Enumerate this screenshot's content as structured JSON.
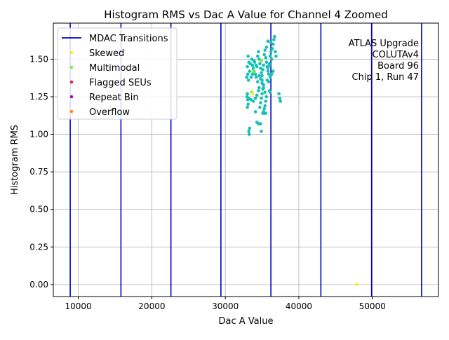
{
  "chart_data": {
    "type": "scatter",
    "title": "Histogram RMS vs Dac A Value for Channel 4 Zoomed",
    "xlabel": "Dac A Value",
    "ylabel": "Histogram RMS",
    "xlim": [
      6600,
      59000
    ],
    "ylim": [
      -0.08,
      1.74
    ],
    "x_ticks": [
      10000,
      20000,
      30000,
      40000,
      50000
    ],
    "x_tick_labels": [
      "10000",
      "20000",
      "30000",
      "40000",
      "50000"
    ],
    "y_ticks": [
      0.0,
      0.25,
      0.5,
      0.75,
      1.0,
      1.25,
      1.5
    ],
    "y_tick_labels": [
      "0.00",
      "0.25",
      "0.50",
      "0.75",
      "1.00",
      "1.25",
      "1.50"
    ],
    "grid": true,
    "legend_position": "top-left",
    "mdac_transitions": [
      8900,
      15800,
      22600,
      29400,
      36200,
      43000,
      49900,
      56700
    ],
    "legend": [
      {
        "label": "MDAC Transitions",
        "marker": "line",
        "color": "#0000cc"
      },
      {
        "label": "Skewed",
        "marker": "dot",
        "color": "#f2ef2a"
      },
      {
        "label": "Multimodal",
        "marker": "dot",
        "color": "#7cf03a"
      },
      {
        "label": "Flagged SEUs",
        "marker": "dot",
        "color": "#d92a3c"
      },
      {
        "label": "Repeat Bin",
        "marker": "dot",
        "color": "#8b1a9a"
      },
      {
        "label": "Overflow",
        "marker": "dot",
        "color": "#ff8c1a"
      }
    ],
    "annotation_lines": [
      "ATLAS Upgrade",
      "COLUTAv4",
      "Board 96",
      "Chip 1, Run 47"
    ],
    "series": [
      {
        "color": "#14c1b4",
        "points": [
          [
            33100,
            1.52
          ],
          [
            33200,
            1.48
          ],
          [
            33000,
            1.45
          ],
          [
            33300,
            1.42
          ],
          [
            33050,
            1.4
          ],
          [
            32900,
            1.38
          ],
          [
            33150,
            1.36
          ],
          [
            33400,
            1.47
          ],
          [
            33600,
            1.5
          ],
          [
            33700,
            1.46
          ],
          [
            33800,
            1.44
          ],
          [
            33900,
            1.42
          ],
          [
            34000,
            1.48
          ],
          [
            34100,
            1.4
          ],
          [
            34200,
            1.38
          ],
          [
            34300,
            1.45
          ],
          [
            34400,
            1.52
          ],
          [
            34500,
            1.55
          ],
          [
            34600,
            1.5
          ],
          [
            34700,
            1.47
          ],
          [
            34800,
            1.44
          ],
          [
            34900,
            1.41
          ],
          [
            35000,
            1.39
          ],
          [
            35100,
            1.43
          ],
          [
            35200,
            1.46
          ],
          [
            35300,
            1.53
          ],
          [
            35400,
            1.56
          ],
          [
            35500,
            1.51
          ],
          [
            35600,
            1.48
          ],
          [
            35700,
            1.45
          ],
          [
            35800,
            1.42
          ],
          [
            35900,
            1.4
          ],
          [
            36000,
            1.47
          ],
          [
            36100,
            1.52
          ],
          [
            36200,
            1.55
          ],
          [
            36300,
            1.5
          ],
          [
            36400,
            1.57
          ],
          [
            36500,
            1.6
          ],
          [
            36600,
            1.63
          ],
          [
            36700,
            1.65
          ],
          [
            35800,
            1.62
          ],
          [
            35600,
            1.58
          ],
          [
            36200,
            1.61
          ],
          [
            36800,
            1.55
          ],
          [
            36900,
            1.52
          ],
          [
            34800,
            1.37
          ],
          [
            35000,
            1.34
          ],
          [
            35200,
            1.31
          ],
          [
            35400,
            1.28
          ],
          [
            35600,
            1.25
          ],
          [
            35500,
            1.22
          ],
          [
            35400,
            1.19
          ],
          [
            35300,
            1.17
          ],
          [
            35200,
            1.15
          ],
          [
            35100,
            1.14
          ],
          [
            35300,
            1.14
          ],
          [
            35500,
            1.14
          ],
          [
            34700,
            1.18
          ],
          [
            34800,
            1.21
          ],
          [
            34900,
            1.24
          ],
          [
            35000,
            1.27
          ],
          [
            35100,
            1.3
          ],
          [
            35200,
            1.33
          ],
          [
            35000,
            1.36
          ],
          [
            33000,
            1.27
          ],
          [
            32950,
            1.25
          ],
          [
            33050,
            1.23
          ],
          [
            33200,
            1.24
          ],
          [
            33500,
            1.23
          ],
          [
            33800,
            1.22
          ],
          [
            34100,
            1.24
          ],
          [
            34300,
            1.26
          ],
          [
            34500,
            1.29
          ],
          [
            34600,
            1.31
          ],
          [
            33000,
            1.18
          ],
          [
            33100,
            1.2
          ],
          [
            34100,
            1.15
          ],
          [
            34300,
            1.08
          ],
          [
            34500,
            1.07
          ],
          [
            34800,
            1.07
          ],
          [
            33300,
            1.04
          ],
          [
            33200,
            1.02
          ],
          [
            33250,
            1.0
          ],
          [
            34900,
            1.02
          ],
          [
            37300,
            1.27
          ],
          [
            37400,
            1.24
          ],
          [
            37500,
            1.22
          ],
          [
            36000,
            1.29
          ],
          [
            36100,
            1.28
          ],
          [
            35900,
            1.35
          ],
          [
            36100,
            1.38
          ],
          [
            36300,
            1.4
          ],
          [
            36500,
            1.42
          ],
          [
            35700,
            1.36
          ],
          [
            34400,
            1.35
          ],
          [
            34600,
            1.39
          ],
          [
            33500,
            1.38
          ],
          [
            33700,
            1.4
          ],
          [
            33900,
            1.49
          ],
          [
            34200,
            1.46
          ],
          [
            35800,
            1.44
          ],
          [
            36000,
            1.46
          ]
        ]
      },
      {
        "color": "#7cf03a",
        "points": [
          [
            34900,
            1.49
          ],
          [
            33600,
            1.28
          ],
          [
            33800,
            1.42
          ]
        ]
      },
      {
        "color": "#f2ef2a",
        "points": [
          [
            47900,
            0.0
          ],
          [
            33700,
            1.27
          ]
        ]
      }
    ]
  }
}
